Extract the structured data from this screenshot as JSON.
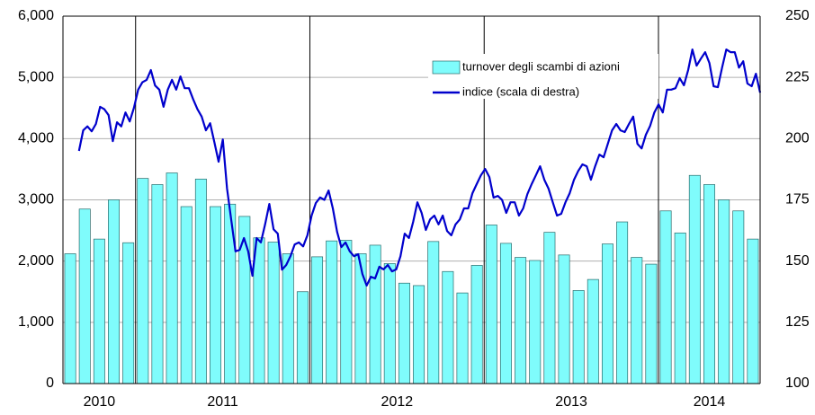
{
  "chart_data": {
    "type": "bar_line",
    "year_groups": [
      {
        "label": "2010",
        "months": 5
      },
      {
        "label": "2011",
        "months": 12
      },
      {
        "label": "2012",
        "months": 12
      },
      {
        "label": "2013",
        "months": 12
      },
      {
        "label": "2014",
        "months": 7
      }
    ],
    "ylim": [
      0,
      6000
    ],
    "yticks": [
      0,
      {
        "value": 1000,
        "label": "1,000"
      },
      {
        "value": 2000,
        "label": "2,000"
      },
      {
        "value": 3000,
        "label": "3,000"
      },
      {
        "value": 4000,
        "label": "4,000"
      },
      {
        "value": 5000,
        "label": "5,000"
      },
      {
        "value": 6000,
        "label": "6,000"
      }
    ],
    "y2lim": [
      100,
      250
    ],
    "y2ticks": [
      100,
      125,
      150,
      175,
      200,
      225,
      250
    ],
    "grid": true,
    "series": [
      {
        "name": "turnover degli scambi di azioni",
        "type": "bar",
        "color": "#7ffcfc",
        "values": [
          2120,
          2850,
          2360,
          3000,
          2300,
          3350,
          3250,
          3440,
          2890,
          3340,
          2890,
          2930,
          2730,
          2380,
          2310,
          2120,
          1500,
          2070,
          2330,
          2340,
          2120,
          2260,
          1960,
          1640,
          1600,
          2320,
          1830,
          1480,
          1930,
          2590,
          2290,
          2060,
          2010,
          2470,
          2100,
          1520,
          1700,
          2280,
          2640,
          2060,
          1950,
          2820,
          2460,
          3400,
          3250,
          3000,
          2820,
          2360
        ]
      },
      {
        "name": "indice (scala di destra)",
        "type": "line",
        "axis": "y2",
        "color": "#0000cc",
        "values": [
          195,
          203.4,
          205,
          203,
          206,
          213,
          212,
          209.6,
          199,
          206.7,
          205,
          210.7,
          207,
          212.6,
          220,
          223,
          224,
          228,
          221.7,
          220,
          213,
          220,
          224,
          220,
          225.4,
          220.6,
          220.6,
          216,
          212,
          209,
          203.4,
          206.3,
          198.6,
          190.6,
          199.7,
          179.6,
          166.7,
          154,
          154.6,
          159.4,
          154,
          144,
          159.4,
          157.6,
          165,
          173.3,
          163,
          161.2,
          146.5,
          148.4,
          152,
          156.8,
          157.6,
          156,
          160.5,
          168.6,
          173.7,
          176,
          175,
          178.8,
          171.5,
          162,
          155.7,
          157.6,
          154,
          152,
          152.8,
          144.7,
          140,
          143.6,
          142.9,
          147.7,
          146.6,
          148.4,
          145.8,
          146.6,
          152,
          161.2,
          159.4,
          166,
          174,
          169.7,
          162.7,
          167,
          168.6,
          165,
          168.6,
          162.3,
          160.5,
          165,
          167,
          171.5,
          171.5,
          177.7,
          181.4,
          185,
          187.6,
          184.3,
          175.9,
          176.6,
          175,
          169.7,
          174,
          174,
          168.6,
          171.5,
          177.4,
          181.4,
          185,
          188.7,
          183.2,
          179.6,
          174,
          168.6,
          169.3,
          174,
          177.7,
          183.2,
          186.8,
          189.5,
          188.7,
          183.2,
          188.7,
          193.5,
          192.4,
          197.9,
          203.4,
          206,
          203.4,
          202.7,
          206,
          209,
          197.9,
          196,
          201.6,
          205.2,
          210.7,
          214,
          210.7,
          220,
          220,
          220.6,
          224.7,
          221.8,
          228,
          236.4,
          229.8,
          232.7,
          235.3,
          230.9,
          221.4,
          221,
          229,
          236.4,
          235.3,
          235.3,
          229,
          231.6,
          222.5,
          221.4,
          226.5,
          218.8
        ]
      }
    ]
  }
}
